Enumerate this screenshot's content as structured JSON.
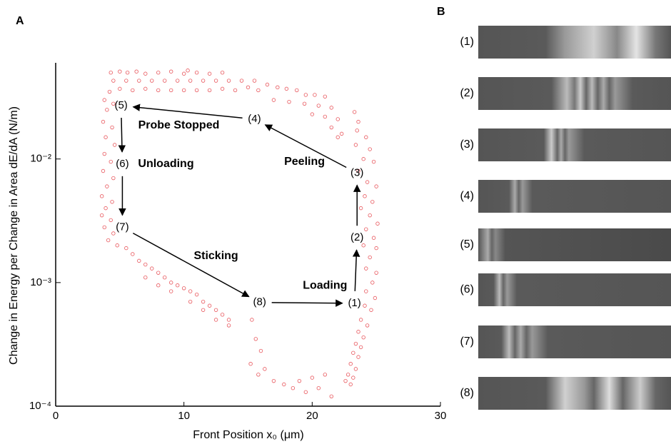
{
  "chart_data": {
    "type": "scatter",
    "x_label": "Front Position x₀ (μm)",
    "y_label": "Change in Energy per Change in Area dE/dA (N/m)",
    "yscale": "log",
    "color": "#e8565c",
    "xlim": [
      0,
      30
    ],
    "xticks": [
      0,
      10,
      20,
      30
    ],
    "ylim": [
      0.0001,
      0.06
    ],
    "yticks": [
      {
        "value": 0.0001,
        "label": "10⁻⁴"
      },
      {
        "value": 0.001,
        "label": "10⁻³"
      },
      {
        "value": 0.01,
        "label": "10⁻²"
      }
    ],
    "x": [
      4.3,
      5,
      5.6,
      6.3,
      7,
      8,
      9,
      10,
      10.3,
      11,
      12,
      13,
      4.5,
      5.5,
      6.5,
      7.5,
      8.5,
      9.5,
      10.5,
      11.5,
      12.5,
      13.5,
      14.5,
      15.5,
      5,
      6,
      7,
      8,
      9,
      10,
      11,
      12,
      13,
      14,
      15,
      15.8,
      16.5,
      17.3,
      18,
      18.8,
      19.5,
      20.2,
      21,
      17,
      18.2,
      19.4,
      20.5,
      21.5,
      20,
      21,
      22,
      21.5,
      22,
      22.3,
      23.3,
      23.6,
      23.5,
      24.2,
      24.5,
      23.4,
      24,
      24.8,
      23.6,
      24.3,
      25,
      24.1,
      24.7,
      23.8,
      24.5,
      25.1,
      24.2,
      24.8,
      24,
      25,
      24.5,
      24.2,
      25,
      24.7,
      24.2,
      24.9,
      24.1,
      24.6,
      23.8,
      24.3,
      23.6,
      24,
      23.4,
      23.8,
      23.2,
      23.6,
      23,
      23.4,
      22.8,
      23.2,
      22.6,
      23,
      4.2,
      3.8,
      4.5,
      4,
      3.7,
      4.4,
      3.9,
      4.6,
      3.8,
      4.3,
      3.7,
      4.5,
      4,
      3.6,
      4.4,
      3.9,
      3.6,
      4.3,
      3.8,
      4.5,
      4.1,
      4.8,
      5.5,
      6,
      6.5,
      7,
      7.5,
      8,
      8.5,
      9,
      9.5,
      10,
      10.5,
      11,
      11.5,
      12,
      12.5,
      13,
      13.5,
      7,
      8,
      9,
      10.5,
      11.5,
      12.5,
      13.5,
      15.3,
      15.6,
      16,
      15.2,
      16.3,
      15.8,
      17,
      17.8,
      18.5,
      19.5,
      20.5,
      21.5,
      20,
      21,
      19
    ],
    "values": [
      0.05,
      0.051,
      0.05,
      0.051,
      0.049,
      0.05,
      0.051,
      0.049,
      0.052,
      0.05,
      0.049,
      0.05,
      0.043,
      0.043,
      0.043,
      0.043,
      0.043,
      0.043,
      0.043,
      0.043,
      0.043,
      0.043,
      0.043,
      0.043,
      0.037,
      0.036,
      0.037,
      0.036,
      0.036,
      0.036,
      0.036,
      0.036,
      0.037,
      0.036,
      0.038,
      0.036,
      0.04,
      0.038,
      0.037,
      0.036,
      0.033,
      0.033,
      0.032,
      0.03,
      0.029,
      0.028,
      0.027,
      0.026,
      0.023,
      0.022,
      0.021,
      0.018,
      0.015,
      0.016,
      0.024,
      0.02,
      0.017,
      0.015,
      0.012,
      0.013,
      0.01,
      0.0095,
      0.008,
      0.0065,
      0.006,
      0.005,
      0.0045,
      0.004,
      0.0035,
      0.003,
      0.0027,
      0.0023,
      0.002,
      0.0019,
      0.0016,
      0.0013,
      0.0012,
      0.001,
      0.00085,
      0.00075,
      0.00065,
      0.0006,
      0.0005,
      0.00045,
      0.0004,
      0.00036,
      0.00032,
      0.0003,
      0.00027,
      0.00025,
      0.00022,
      0.0002,
      0.00018,
      0.00017,
      0.00016,
      0.00015,
      0.035,
      0.03,
      0.028,
      0.025,
      0.02,
      0.018,
      0.015,
      0.013,
      0.011,
      0.0095,
      0.008,
      0.007,
      0.006,
      0.005,
      0.0045,
      0.004,
      0.0035,
      0.0032,
      0.0028,
      0.0025,
      0.0022,
      0.002,
      0.0019,
      0.0017,
      0.0015,
      0.0014,
      0.0013,
      0.0012,
      0.0011,
      0.001,
      0.00095,
      0.0009,
      0.00085,
      0.0008,
      0.0007,
      0.00065,
      0.0006,
      0.00055,
      0.0005,
      0.0011,
      0.00095,
      0.00085,
      0.0007,
      0.0006,
      0.0005,
      0.00045,
      0.0005,
      0.00035,
      0.00028,
      0.00022,
      0.0002,
      0.00018,
      0.00016,
      0.00015,
      0.00014,
      0.00013,
      0.00014,
      0.00012,
      0.00017,
      0.00018,
      0.00016
    ],
    "states": [
      {
        "label": "(1)",
        "x": 23.3,
        "y": 0.00068
      },
      {
        "label": "(2)",
        "x": 23.5,
        "y": 0.0023
      },
      {
        "label": "(3)",
        "x": 23.5,
        "y": 0.0077
      },
      {
        "label": "(4)",
        "x": 15.5,
        "y": 0.021
      },
      {
        "label": "(5)",
        "x": 5.1,
        "y": 0.027
      },
      {
        "label": "(6)",
        "x": 5.2,
        "y": 0.0091
      },
      {
        "label": "(7)",
        "x": 5.2,
        "y": 0.0028
      },
      {
        "label": "(8)",
        "x": 15.9,
        "y": 0.00069
      }
    ],
    "phase_labels": [
      {
        "text": "Probe Stopped",
        "x": 9.6,
        "y": 0.0187
      },
      {
        "text": "Unloading",
        "x": 8.6,
        "y": 0.0091
      },
      {
        "text": "Peeling",
        "x": 19.4,
        "y": 0.0095
      },
      {
        "text": "Sticking",
        "x": 12.5,
        "y": 0.00164
      },
      {
        "text": "Loading",
        "x": 21.0,
        "y": 0.00094
      }
    ]
  },
  "figure": {
    "panel_a": "A",
    "panel_b": "B",
    "image_labels": [
      "(1)",
      "(2)",
      "(3)",
      "(4)",
      "(5)",
      "(6)",
      "(7)",
      "(8)"
    ]
  }
}
